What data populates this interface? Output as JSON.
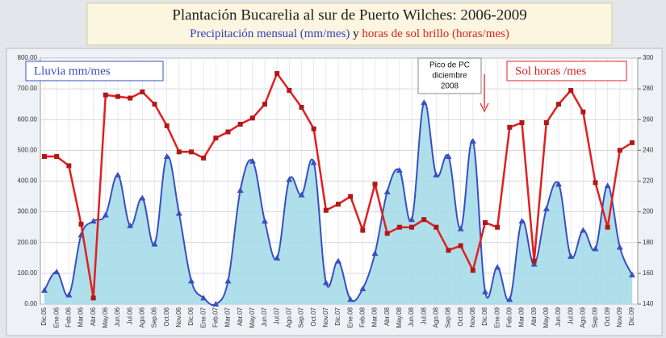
{
  "chart_data": {
    "type": "line",
    "title": "Plantación Bucarelia al sur de Puerto Wilches: 2006-2009",
    "subtitle_parts": [
      "Precipitación mensual (mm/mes)",
      "y",
      "horas de sol brillo (horas/mes)"
    ],
    "annotation": [
      "Pico de PC",
      "diciembre",
      "2008"
    ],
    "categories": [
      "Dic.05",
      "Ene.06",
      "Feb.06",
      "Mar.06",
      "Abr.06",
      "May.06",
      "Jun.06",
      "Jul.06",
      "Ago.06",
      "Sep.06",
      "Oct.06",
      "Nov.06",
      "Dic.06",
      "Ene.07",
      "Feb.07",
      "Mar.07",
      "Abr.07",
      "May.07",
      "Jun.07",
      "Jul.07",
      "Ago.07",
      "Sep.07",
      "Oct.07",
      "Nov.07",
      "Dic.07",
      "Ene.08",
      "Feb.08",
      "Mar.08",
      "Abr.08",
      "May.08",
      "Jun.08",
      "Jul.08",
      "Ago.08",
      "Sep.08",
      "Oct.08",
      "Nov.08",
      "Dic.08",
      "Ene.09",
      "Feb.09",
      "Mar.09",
      "Abr.09",
      "May.09",
      "Jun.09",
      "Jul.09",
      "Ago.09",
      "Sep.09",
      "Oct.09",
      "Nov.09",
      "Dic.09"
    ],
    "series": [
      {
        "name": "Lluvia mm/mes",
        "color": "#3a4fc0",
        "fill": "#a6dbe9",
        "axis": "y",
        "values": [
          45,
          105,
          30,
          225,
          270,
          290,
          420,
          255,
          345,
          195,
          480,
          295,
          75,
          20,
          0,
          75,
          370,
          465,
          270,
          150,
          405,
          355,
          460,
          70,
          140,
          15,
          50,
          165,
          365,
          435,
          275,
          655,
          420,
          480,
          245,
          530,
          40,
          120,
          15,
          270,
          130,
          310,
          390,
          155,
          240,
          180,
          385,
          185,
          95
        ]
      },
      {
        "name": "Sol horas /mes",
        "color": "#e02020",
        "axis": "y2",
        "values": [
          236,
          236,
          230,
          192,
          144,
          276,
          275,
          274,
          278,
          270,
          256,
          239,
          239,
          235,
          248,
          252,
          257,
          261,
          270,
          290,
          279,
          268,
          254,
          201,
          205,
          210,
          188,
          218,
          186,
          190,
          190,
          195,
          190,
          175,
          178,
          162,
          193,
          190,
          255,
          258,
          168,
          258,
          270,
          279,
          265,
          219,
          190,
          240,
          245
        ]
      }
    ],
    "ylim": [
      0,
      800
    ],
    "yticks": [
      {
        "value": 0,
        "label": "0.00"
      },
      {
        "value": 100,
        "label": "100.00"
      },
      {
        "value": 200,
        "label": "200.00"
      },
      {
        "value": 300,
        "label": "300.00"
      },
      {
        "value": 400,
        "label": "400.00"
      },
      {
        "value": 500,
        "label": "500.00"
      },
      {
        "value": 600,
        "label": "600.00"
      },
      {
        "value": 700,
        "label": "700.00"
      },
      {
        "value": 800,
        "label": "800.00"
      }
    ],
    "y2lim": [
      140,
      300
    ],
    "y2ticks": [
      140,
      160,
      180,
      200,
      220,
      240,
      260,
      280,
      300
    ],
    "grid": true
  }
}
